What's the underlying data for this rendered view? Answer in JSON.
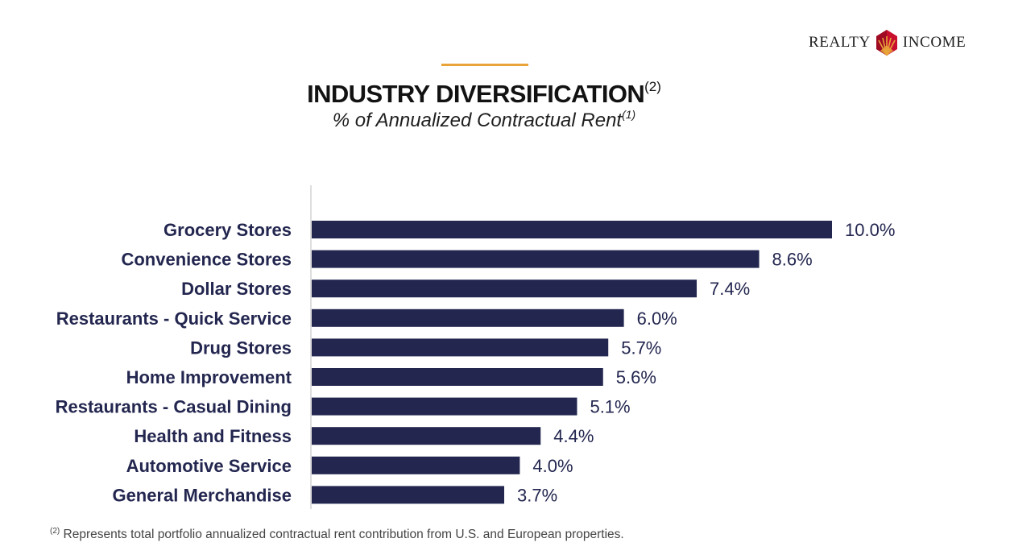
{
  "brand": {
    "word1": "REALTY",
    "word2": "INCOME",
    "logo_icon": "realty-income-diamond-icon",
    "colors": [
      "#c8102e",
      "#e8a33a"
    ]
  },
  "header": {
    "title": "INDUSTRY DIVERSIFICATION",
    "title_note": "(2)",
    "subtitle": "% of Annualized Contractual Rent",
    "subtitle_note": "(1)"
  },
  "chart_data": {
    "type": "bar",
    "orientation": "horizontal",
    "categories": [
      "Grocery Stores",
      "Convenience Stores",
      "Dollar Stores",
      "Restaurants - Quick Service",
      "Drug Stores",
      "Home Improvement",
      "Restaurants - Casual Dining",
      "Health and Fitness",
      "Automotive Service",
      "General Merchandise"
    ],
    "values": [
      10.0,
      8.6,
      7.4,
      6.0,
      5.7,
      5.6,
      5.1,
      4.4,
      4.0,
      3.7
    ],
    "value_labels": [
      "10.0%",
      "8.6%",
      "7.4%",
      "6.0%",
      "5.7%",
      "5.6%",
      "5.1%",
      "4.4%",
      "4.0%",
      "3.7%"
    ],
    "bar_color": "#23264f",
    "grid": false,
    "legend": "none"
  },
  "footnote": {
    "marker": "(2)",
    "text": " Represents total portfolio annualized contractual rent contribution from U.S. and European properties."
  }
}
